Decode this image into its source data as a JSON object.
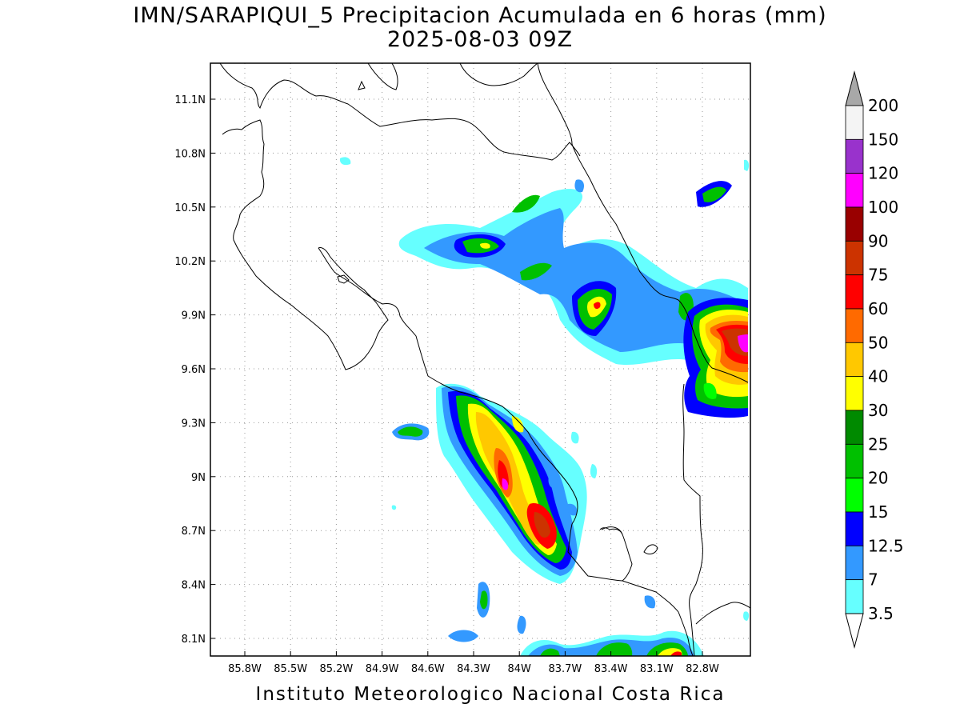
{
  "title": {
    "line1": "IMN/SARAPIQUI_5 Precipitacion Acumulada en 6 horas (mm)",
    "line2": "2025-08-03 09Z"
  },
  "footer": "Instituto Meteorologico Nacional Costa Rica",
  "axes": {
    "lon_ticks": [
      "85.8W",
      "85.5W",
      "85.2W",
      "84.9W",
      "84.6W",
      "84.3W",
      "84W",
      "83.7W",
      "83.4W",
      "83.1W",
      "82.8W"
    ],
    "lat_ticks": [
      "11.1N",
      "10.8N",
      "10.5N",
      "10.2N",
      "9.9N",
      "9.6N",
      "9.3N",
      "9N",
      "8.7N",
      "8.4N",
      "8.1N"
    ]
  },
  "colorbar": {
    "labels": [
      "200",
      "150",
      "120",
      "100",
      "90",
      "75",
      "60",
      "50",
      "40",
      "30",
      "25",
      "20",
      "15",
      "12.5",
      "7",
      "3.5"
    ],
    "colors": [
      "#f4f4f4",
      "#9932cc",
      "#ff00ff",
      "#990000",
      "#cc3300",
      "#ff0000",
      "#ff6a00",
      "#ffc800",
      "#ffff00",
      "#008a00",
      "#00c000",
      "#00ff00",
      "#0000ff",
      "#3399ff",
      "#66ffff"
    ],
    "over_color": "#a8a8a8",
    "under_color": "#ffffff"
  },
  "colors": {
    "lvl1": "#66ffff",
    "lvl2": "#3399ff",
    "lvl3": "#0000ff",
    "lvl4": "#00ff00",
    "lvl5": "#00c000",
    "lvl6": "#008a00",
    "lvl7": "#ffff00",
    "lvl8": "#ffc800",
    "lvl9": "#ff6a00",
    "lvl10": "#ff0000",
    "lvl11": "#990000",
    "lvl12": "#ff00ff"
  }
}
